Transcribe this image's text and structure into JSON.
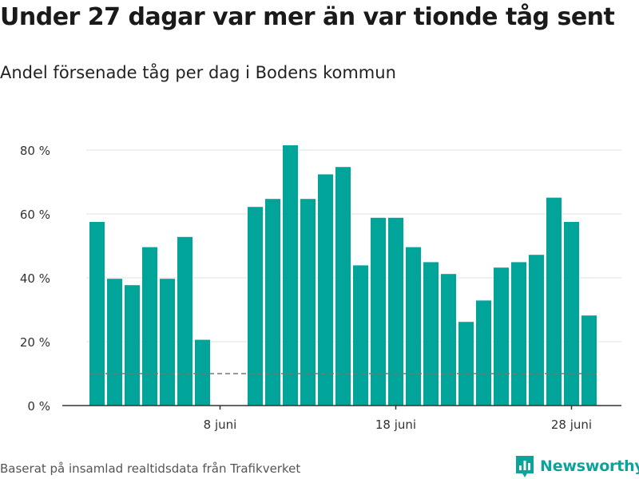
{
  "title": "Under 27 dagar var mer än var tionde tåg sent",
  "subtitle": "Andel försenade tåg per dag i Bodens kommun",
  "source": "Baserat på insamlad realtidsdata från Trafikverket",
  "brand": {
    "name": "Newsworthy",
    "icon": "newsworthy-logo-icon"
  },
  "colors": {
    "bar": "#00a499",
    "grid": "#e0e0e0",
    "threshold": "#777777",
    "axis": "#333333"
  },
  "chart_data": {
    "type": "bar",
    "y_unit": "%",
    "ylim": [
      0,
      80
    ],
    "yticks": [
      {
        "value": 0,
        "label": "0 %"
      },
      {
        "value": 20,
        "label": "20 %"
      },
      {
        "value": 40,
        "label": "40 %"
      },
      {
        "value": 60,
        "label": "60 %"
      },
      {
        "value": 80,
        "label": "80 %"
      }
    ],
    "xticks": [
      {
        "day": 8,
        "label": "8 juni"
      },
      {
        "day": 18,
        "label": "18 juni"
      },
      {
        "day": 28,
        "label": "28 juni"
      }
    ],
    "x": [
      1,
      2,
      3,
      4,
      5,
      6,
      7,
      8,
      9,
      10,
      11,
      12,
      13,
      14,
      15,
      16,
      17,
      18,
      19,
      20,
      21,
      22,
      23,
      24,
      25,
      26,
      27,
      28,
      29,
      30,
      31
    ],
    "values": [
      57.5,
      39.7,
      37.7,
      49.6,
      39.7,
      52.8,
      20.6,
      null,
      null,
      62.2,
      64.7,
      81.5,
      64.7,
      72.4,
      74.7,
      43.9,
      58.8,
      58.8,
      49.6,
      44.9,
      41.2,
      26.2,
      32.9,
      43.2,
      44.9,
      47.2,
      65.1,
      57.5,
      28.2,
      null,
      null
    ],
    "threshold": {
      "value": 10,
      "style": "dashed",
      "from_day": 1,
      "to_day": 29
    },
    "grid": true,
    "legend": "none"
  }
}
